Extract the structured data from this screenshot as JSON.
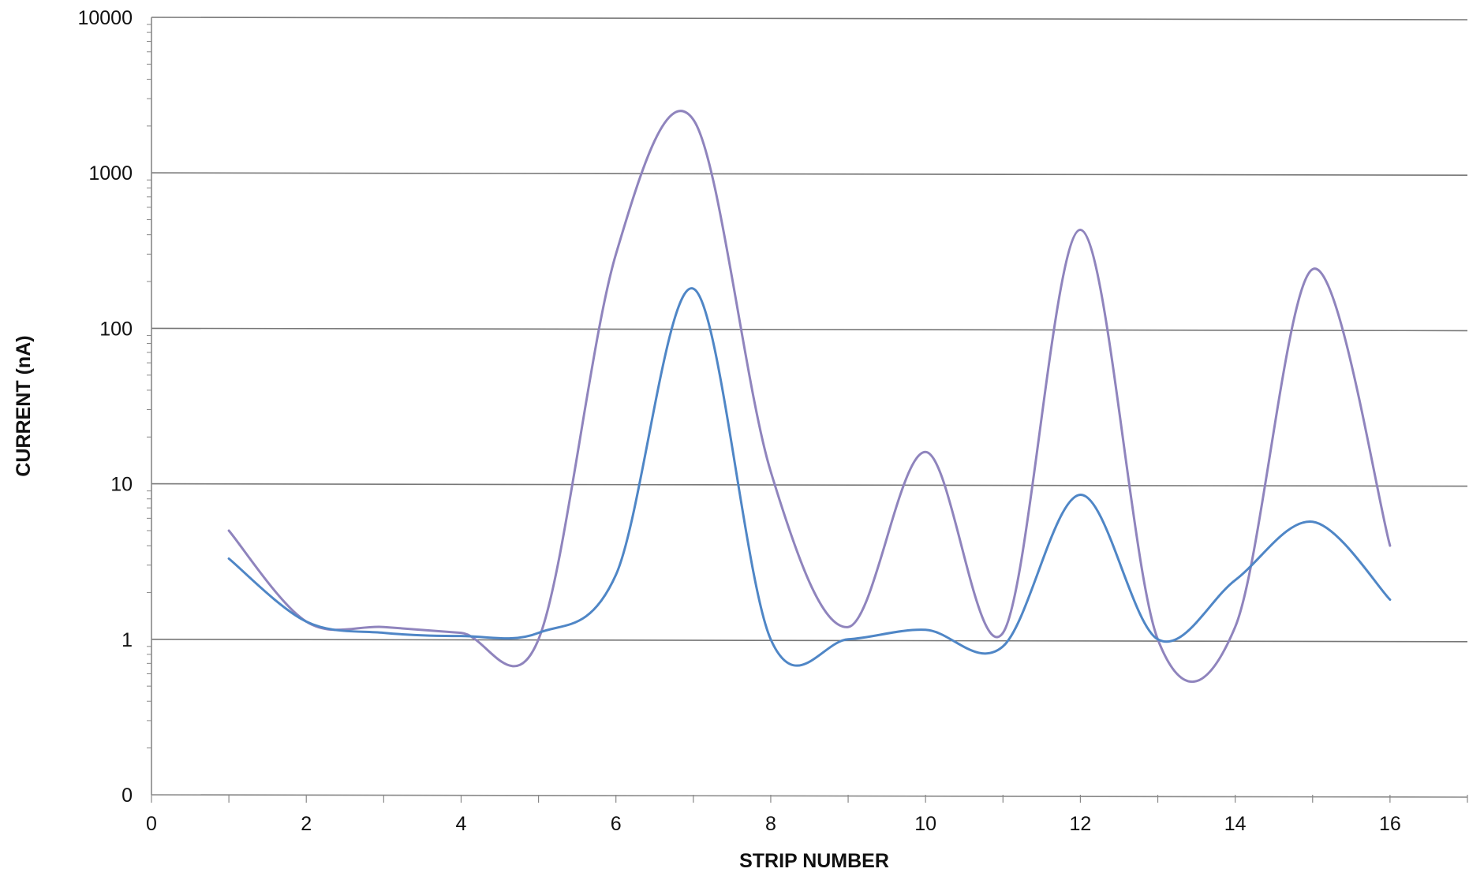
{
  "chart_data": {
    "type": "line",
    "xlabel": "STRIP NUMBER",
    "ylabel": "CURRENT (nA)",
    "xlim": [
      0,
      17
    ],
    "x_ticks": [
      0,
      2,
      4,
      6,
      8,
      10,
      12,
      14,
      16
    ],
    "y_tick_labels": [
      "0",
      "1",
      "10",
      "100",
      "1000",
      "10000"
    ],
    "y_scale": "log, with a bottom tick labelled 0 one decade below 1",
    "y_grid": true,
    "x_grid": false,
    "legend": "none",
    "x": [
      1,
      2,
      3,
      4,
      5,
      6,
      7,
      8,
      9,
      10,
      11,
      12,
      13,
      14,
      15,
      16
    ],
    "series": [
      {
        "color": "#8f84bd",
        "values": [
          5.0,
          1.3,
          1.2,
          1.1,
          1.0,
          300,
          2200,
          12,
          1.2,
          16,
          1.1,
          430,
          1.0,
          1.2,
          240,
          4.0
        ]
      },
      {
        "color": "#4f86c6",
        "values": [
          3.3,
          1.3,
          1.1,
          1.05,
          1.1,
          2.6,
          180,
          1.0,
          1.0,
          1.15,
          0.9,
          8.5,
          1.0,
          2.4,
          5.7,
          1.8
        ]
      }
    ],
    "colors": {
      "gridline": "#777777",
      "axis": "#888888",
      "background": "#ffffff"
    }
  }
}
